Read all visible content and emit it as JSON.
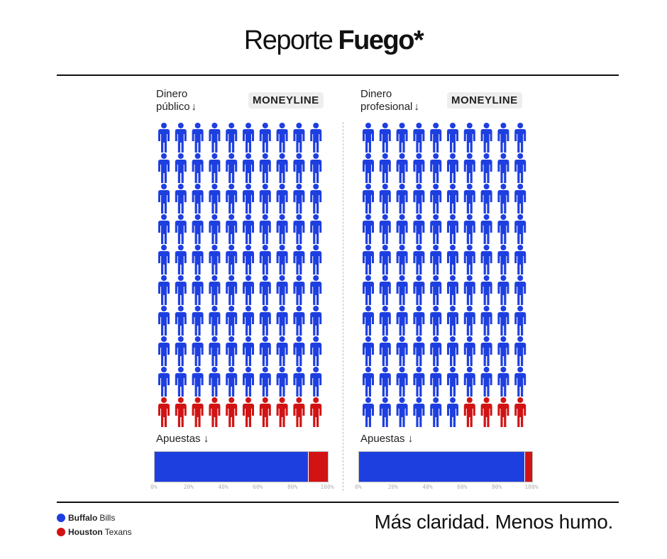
{
  "header": {
    "title_normal": "Reporte",
    "title_bold": "Fuego*"
  },
  "colors": {
    "team_a": "#1e3fe0",
    "team_b": "#d11313",
    "text": "#111111"
  },
  "legend": [
    {
      "team": "Buffalo",
      "suffix": "Bills",
      "color": "#1e3fe0"
    },
    {
      "team": "Houston",
      "suffix": "Texans",
      "color": "#d11313"
    }
  ],
  "slogan": "Más claridad. Menos humo.",
  "chart_data": [
    {
      "type": "bar",
      "heading_line1": "Dinero",
      "heading_line2": "público",
      "heading_arrow": "↓",
      "badge": "MONEYLINE",
      "icon_grid": {
        "columns": 10,
        "rows": 10,
        "series": [
          {
            "name": "Buffalo Bills",
            "count": 90
          },
          {
            "name": "Houston Texans",
            "count": 10
          }
        ]
      },
      "bar_label": "Apuestas ↓",
      "series": [
        {
          "name": "Buffalo Bills",
          "values": [
            89
          ]
        },
        {
          "name": "Houston Texans",
          "values": [
            11
          ]
        }
      ],
      "xlim": [
        0,
        100
      ],
      "ticks": [
        "0%",
        "20%",
        "40%",
        "60%",
        "80%",
        "100%"
      ]
    },
    {
      "type": "bar",
      "heading_line1": "Dinero",
      "heading_line2": "profesional",
      "heading_arrow": "↓",
      "badge": "MONEYLINE",
      "icon_grid": {
        "columns": 10,
        "rows": 10,
        "series": [
          {
            "name": "Buffalo Bills",
            "count": 96
          },
          {
            "name": "Houston Texans",
            "count": 4
          }
        ]
      },
      "bar_label": "Apuestas ↓",
      "series": [
        {
          "name": "Buffalo Bills",
          "values": [
            96
          ]
        },
        {
          "name": "Houston Texans",
          "values": [
            4
          ]
        }
      ],
      "xlim": [
        0,
        100
      ],
      "ticks": [
        "0%",
        "20%",
        "40%",
        "60%",
        "80%",
        "100%"
      ]
    }
  ]
}
